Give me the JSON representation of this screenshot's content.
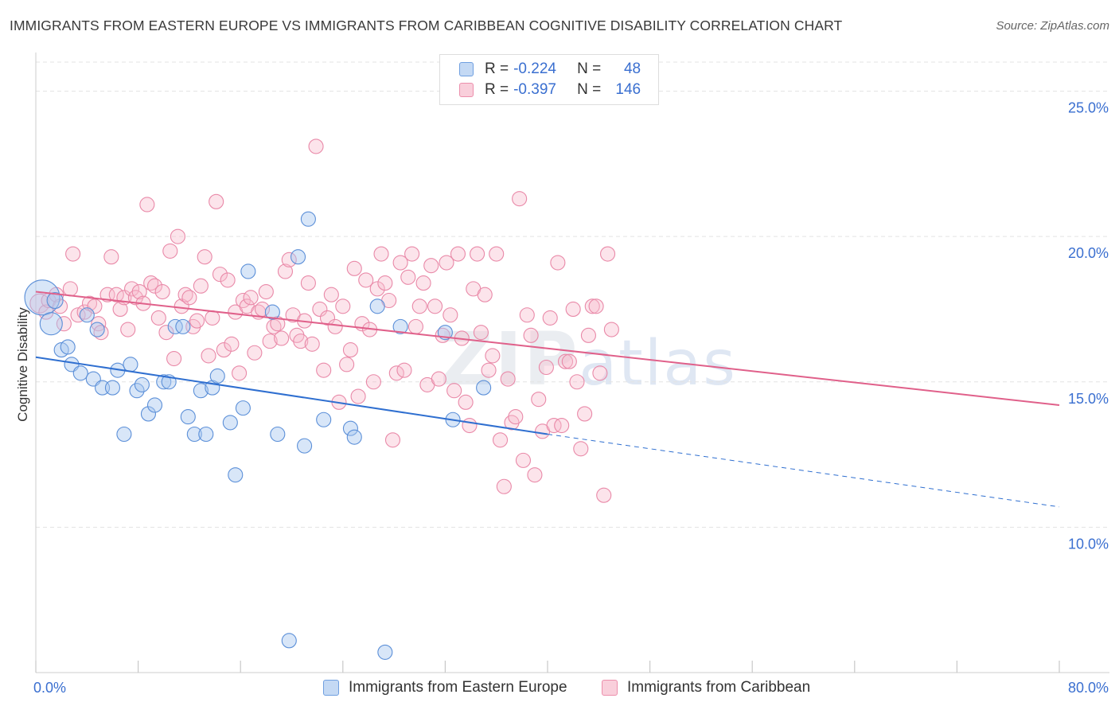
{
  "title": "IMMIGRANTS FROM EASTERN EUROPE VS IMMIGRANTS FROM CARIBBEAN COGNITIVE DISABILITY CORRELATION CHART",
  "source": "Source: ZipAtlas.com",
  "watermark": {
    "zip": "ZIP",
    "atlas": "atlas"
  },
  "legend": {
    "r_label": "R =",
    "n_label": "N =",
    "rows": [
      {
        "r": "-0.224",
        "n": "48",
        "color": "#a9c7ef",
        "border": "#6f9fe0"
      },
      {
        "r": "-0.397",
        "n": "146",
        "color": "#f7bccd",
        "border": "#ec8fac"
      }
    ]
  },
  "colors": {
    "blue_fill": "rgba(169,199,239,0.45)",
    "blue_stroke": "#5b8fd8",
    "blue_line": "#2f6fd0",
    "pink_fill": "rgba(247,188,205,0.40)",
    "pink_stroke": "#e989a8",
    "pink_line": "#e0608a",
    "grid": "#e3e3e3",
    "tick_label": "#3a6fd0"
  },
  "chart_data": {
    "type": "scatter",
    "title": "IMMIGRANTS FROM EASTERN EUROPE VS IMMIGRANTS FROM CARIBBEAN COGNITIVE DISABILITY CORRELATION CHART",
    "xlabel": "",
    "ylabel": "Cognitive Disability",
    "xlim": [
      0,
      80
    ],
    "ylim": [
      5,
      26
    ],
    "x_tick_labels": [
      {
        "value": 0,
        "label": "0.0%"
      },
      {
        "value": 80,
        "label": "80.0%"
      }
    ],
    "y_ticks": [
      {
        "value": 10,
        "label": "10.0%"
      },
      {
        "value": 15,
        "label": "15.0%"
      },
      {
        "value": 20,
        "label": "20.0%"
      },
      {
        "value": 25,
        "label": "25.0%"
      }
    ],
    "x_minor_ticks": [
      0,
      8,
      16,
      24,
      32,
      40,
      48,
      56,
      64,
      72,
      80
    ],
    "grid": true,
    "legend_position": "top-center",
    "series": [
      {
        "name": "Immigrants from Eastern Europe",
        "r": -0.224,
        "n": 48,
        "trend": {
          "x0": 0,
          "y0": 15.85,
          "x1": 40,
          "y1": 13.2,
          "dash_to_x": 80,
          "dash_to_y": 10.7
        },
        "points": [
          [
            0.5,
            17.9,
            22
          ],
          [
            1.2,
            17.0,
            14
          ],
          [
            1.5,
            17.8,
            10
          ],
          [
            2.0,
            16.1,
            9
          ],
          [
            2.5,
            16.2,
            9
          ],
          [
            2.8,
            15.6,
            9
          ],
          [
            3.5,
            15.3,
            9
          ],
          [
            4.0,
            17.3,
            9
          ],
          [
            4.5,
            15.1,
            9
          ],
          [
            4.8,
            16.8,
            9
          ],
          [
            5.2,
            14.8,
            9
          ],
          [
            6.0,
            14.8,
            9
          ],
          [
            6.4,
            15.4,
            9
          ],
          [
            6.9,
            13.2,
            9
          ],
          [
            7.4,
            15.6,
            9
          ],
          [
            7.9,
            14.7,
            9
          ],
          [
            8.3,
            14.9,
            9
          ],
          [
            8.8,
            13.9,
            9
          ],
          [
            9.3,
            14.2,
            9
          ],
          [
            10.0,
            15.0,
            9
          ],
          [
            10.4,
            15.0,
            9
          ],
          [
            10.9,
            16.9,
            9
          ],
          [
            11.5,
            16.9,
            9
          ],
          [
            11.9,
            13.8,
            9
          ],
          [
            12.4,
            13.2,
            9
          ],
          [
            12.9,
            14.7,
            9
          ],
          [
            13.3,
            13.2,
            9
          ],
          [
            13.8,
            14.8,
            9
          ],
          [
            14.2,
            15.2,
            9
          ],
          [
            15.2,
            13.6,
            9
          ],
          [
            15.6,
            11.8,
            9
          ],
          [
            16.2,
            14.1,
            9
          ],
          [
            16.6,
            18.8,
            9
          ],
          [
            18.5,
            17.4,
            9
          ],
          [
            18.9,
            13.2,
            9
          ],
          [
            19.8,
            6.1,
            9
          ],
          [
            20.5,
            19.3,
            9
          ],
          [
            21.0,
            12.8,
            9
          ],
          [
            21.3,
            20.6,
            9
          ],
          [
            22.5,
            13.7,
            9
          ],
          [
            24.6,
            13.4,
            9
          ],
          [
            24.9,
            13.1,
            9
          ],
          [
            26.7,
            17.6,
            9
          ],
          [
            27.3,
            5.7,
            9
          ],
          [
            28.5,
            16.9,
            9
          ],
          [
            32.0,
            16.7,
            9
          ],
          [
            32.6,
            13.7,
            9
          ],
          [
            35.0,
            14.8,
            9
          ]
        ]
      },
      {
        "name": "Immigrants from Caribbean",
        "r": -0.397,
        "n": 146,
        "trend": {
          "x0": 0,
          "y0": 18.1,
          "x1": 80,
          "y1": 14.2
        },
        "points": [
          [
            0.3,
            17.7,
            12
          ],
          [
            0.8,
            17.4,
            9
          ],
          [
            1.0,
            17.8,
            9
          ],
          [
            1.6,
            18.0,
            9
          ],
          [
            1.9,
            17.6,
            9
          ],
          [
            2.2,
            17.0,
            9
          ],
          [
            2.7,
            18.2,
            9
          ],
          [
            2.9,
            19.4,
            9
          ],
          [
            3.3,
            17.3,
            9
          ],
          [
            3.8,
            17.4,
            9
          ],
          [
            4.2,
            17.7,
            9
          ],
          [
            4.6,
            17.6,
            9
          ],
          [
            4.9,
            17.0,
            9
          ],
          [
            5.1,
            16.7,
            9
          ],
          [
            5.6,
            18.0,
            9
          ],
          [
            5.9,
            19.3,
            9
          ],
          [
            6.3,
            18.0,
            9
          ],
          [
            6.6,
            17.5,
            9
          ],
          [
            6.9,
            17.9,
            9
          ],
          [
            7.2,
            16.8,
            9
          ],
          [
            7.5,
            18.2,
            9
          ],
          [
            7.8,
            17.9,
            9
          ],
          [
            8.1,
            18.1,
            9
          ],
          [
            8.4,
            17.7,
            9
          ],
          [
            8.7,
            21.1,
            9
          ],
          [
            9.0,
            18.4,
            9
          ],
          [
            9.3,
            18.3,
            9
          ],
          [
            9.6,
            17.2,
            9
          ],
          [
            9.9,
            18.1,
            9
          ],
          [
            10.2,
            16.7,
            9
          ],
          [
            10.5,
            19.5,
            9
          ],
          [
            10.8,
            15.8,
            9
          ],
          [
            11.1,
            20.0,
            9
          ],
          [
            11.4,
            17.6,
            9
          ],
          [
            11.7,
            18.0,
            9
          ],
          [
            12.0,
            17.9,
            9
          ],
          [
            12.3,
            16.9,
            9
          ],
          [
            12.6,
            17.1,
            9
          ],
          [
            12.9,
            18.3,
            9
          ],
          [
            13.2,
            19.3,
            9
          ],
          [
            13.5,
            15.9,
            9
          ],
          [
            13.8,
            17.2,
            9
          ],
          [
            14.1,
            21.2,
            9
          ],
          [
            14.4,
            18.7,
            9
          ],
          [
            14.7,
            16.1,
            9
          ],
          [
            15.0,
            18.5,
            9
          ],
          [
            15.3,
            16.3,
            9
          ],
          [
            15.6,
            17.4,
            9
          ],
          [
            15.9,
            15.3,
            9
          ],
          [
            16.2,
            17.8,
            9
          ],
          [
            16.5,
            17.6,
            9
          ],
          [
            16.8,
            17.9,
            9
          ],
          [
            17.1,
            16.0,
            9
          ],
          [
            17.4,
            17.4,
            9
          ],
          [
            17.7,
            17.5,
            9
          ],
          [
            18.0,
            18.1,
            9
          ],
          [
            18.3,
            16.4,
            9
          ],
          [
            18.6,
            16.9,
            9
          ],
          [
            18.9,
            17.0,
            9
          ],
          [
            19.2,
            16.5,
            9
          ],
          [
            19.5,
            18.8,
            9
          ],
          [
            19.8,
            19.2,
            9
          ],
          [
            20.1,
            17.3,
            9
          ],
          [
            20.4,
            16.6,
            9
          ],
          [
            20.7,
            16.4,
            9
          ],
          [
            21.0,
            17.1,
            9
          ],
          [
            21.3,
            18.4,
            9
          ],
          [
            21.6,
            16.3,
            9
          ],
          [
            21.9,
            23.1,
            9
          ],
          [
            22.2,
            17.5,
            9
          ],
          [
            22.5,
            15.4,
            9
          ],
          [
            22.8,
            17.2,
            9
          ],
          [
            23.1,
            18.0,
            9
          ],
          [
            23.4,
            16.9,
            9
          ],
          [
            23.7,
            14.3,
            9
          ],
          [
            24.0,
            17.6,
            9
          ],
          [
            24.3,
            15.6,
            9
          ],
          [
            24.6,
            16.1,
            9
          ],
          [
            24.9,
            18.9,
            9
          ],
          [
            25.2,
            14.5,
            9
          ],
          [
            25.5,
            17.0,
            9
          ],
          [
            25.8,
            18.5,
            9
          ],
          [
            26.1,
            16.8,
            9
          ],
          [
            26.4,
            15.0,
            9
          ],
          [
            26.7,
            18.2,
            9
          ],
          [
            27.0,
            19.4,
            9
          ],
          [
            27.3,
            18.4,
            9
          ],
          [
            27.6,
            17.8,
            9
          ],
          [
            27.9,
            13.0,
            9
          ],
          [
            28.2,
            15.3,
            9
          ],
          [
            28.5,
            19.1,
            9
          ],
          [
            28.8,
            15.4,
            9
          ],
          [
            29.1,
            18.6,
            9
          ],
          [
            29.4,
            19.4,
            9
          ],
          [
            29.7,
            16.9,
            9
          ],
          [
            30.0,
            17.6,
            9
          ],
          [
            30.3,
            18.4,
            9
          ],
          [
            30.6,
            14.9,
            9
          ],
          [
            30.9,
            19.0,
            9
          ],
          [
            31.2,
            17.6,
            9
          ],
          [
            31.5,
            15.1,
            9
          ],
          [
            31.8,
            16.6,
            9
          ],
          [
            32.1,
            19.1,
            9
          ],
          [
            32.4,
            17.3,
            9
          ],
          [
            32.7,
            14.7,
            9
          ],
          [
            33.0,
            19.4,
            9
          ],
          [
            33.3,
            16.5,
            9
          ],
          [
            33.6,
            14.3,
            9
          ],
          [
            33.9,
            13.5,
            9
          ],
          [
            34.2,
            18.2,
            9
          ],
          [
            34.5,
            19.4,
            9
          ],
          [
            34.8,
            16.7,
            9
          ],
          [
            35.1,
            18.0,
            9
          ],
          [
            35.4,
            15.4,
            9
          ],
          [
            35.7,
            15.9,
            9
          ],
          [
            36.0,
            19.4,
            9
          ],
          [
            36.3,
            13.0,
            9
          ],
          [
            36.6,
            11.4,
            9
          ],
          [
            36.9,
            15.1,
            9
          ],
          [
            37.2,
            13.6,
            9
          ],
          [
            37.5,
            13.8,
            9
          ],
          [
            37.8,
            21.3,
            9
          ],
          [
            38.1,
            12.3,
            9
          ],
          [
            38.4,
            17.3,
            9
          ],
          [
            38.7,
            16.6,
            9
          ],
          [
            39.0,
            11.8,
            9
          ],
          [
            39.3,
            14.4,
            9
          ],
          [
            39.6,
            13.3,
            9
          ],
          [
            39.9,
            15.5,
            9
          ],
          [
            40.2,
            17.2,
            9
          ],
          [
            40.5,
            13.5,
            9
          ],
          [
            40.8,
            19.1,
            9
          ],
          [
            41.1,
            13.5,
            9
          ],
          [
            41.4,
            15.7,
            9
          ],
          [
            41.7,
            15.7,
            9
          ],
          [
            42.0,
            17.5,
            9
          ],
          [
            42.3,
            15.0,
            9
          ],
          [
            42.6,
            12.7,
            9
          ],
          [
            42.9,
            13.9,
            9
          ],
          [
            43.2,
            16.6,
            9
          ],
          [
            43.5,
            17.6,
            9
          ],
          [
            43.8,
            17.6,
            9
          ],
          [
            44.1,
            15.3,
            9
          ],
          [
            44.4,
            11.1,
            9
          ],
          [
            44.7,
            19.4,
            9
          ],
          [
            45.0,
            16.8,
            9
          ]
        ]
      }
    ]
  },
  "bottom_legend": [
    {
      "label": "Immigrants from Eastern Europe"
    },
    {
      "label": "Immigrants from Caribbean"
    }
  ]
}
